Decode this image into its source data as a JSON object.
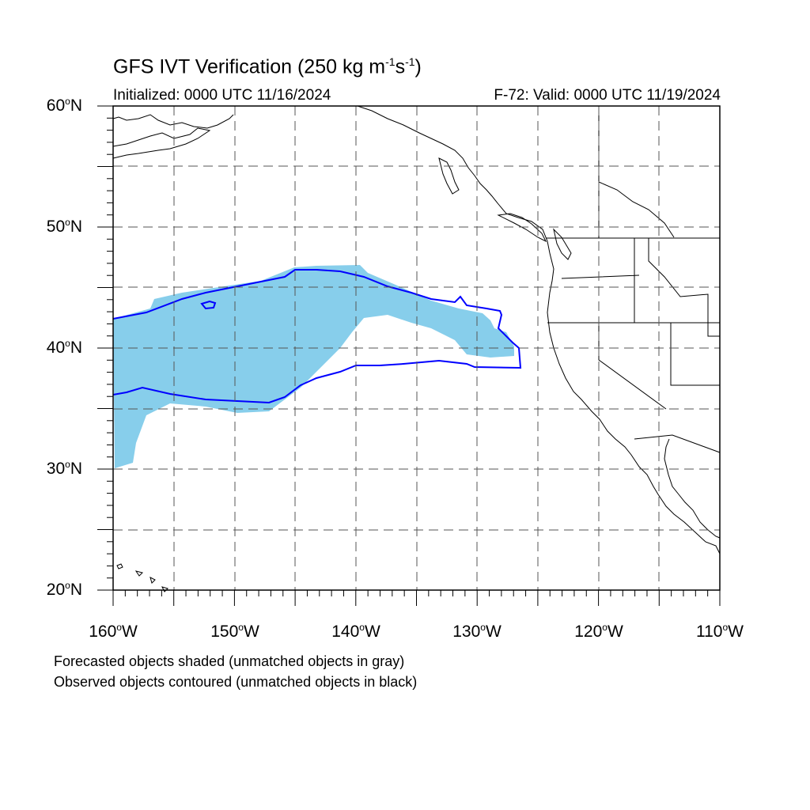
{
  "header": {
    "title_main": "GFS IVT Verification (250 kg m",
    "title_sup1": "-1",
    "title_mid": "s",
    "title_sup2": "-1",
    "title_end": ")",
    "initialized": "Initialized: 0000 UTC 11/16/2024",
    "valid": "F-72: Valid: 0000 UTC 11/19/2024"
  },
  "axes": {
    "lat_labels": [
      {
        "deg": "60",
        "hem": "N"
      },
      {
        "deg": "50",
        "hem": "N"
      },
      {
        "deg": "40",
        "hem": "N"
      },
      {
        "deg": "30",
        "hem": "N"
      },
      {
        "deg": "20",
        "hem": "N"
      }
    ],
    "lon_labels": [
      {
        "deg": "160",
        "hem": "W"
      },
      {
        "deg": "150",
        "hem": "W"
      },
      {
        "deg": "140",
        "hem": "W"
      },
      {
        "deg": "130",
        "hem": "W"
      },
      {
        "deg": "120",
        "hem": "W"
      },
      {
        "deg": "110",
        "hem": "W"
      }
    ],
    "lon_range": [
      -160,
      -110
    ],
    "lat_range": [
      20,
      60
    ]
  },
  "legend": {
    "line1": "Forecasted objects shaded (unmatched objects in gray)",
    "line2": "Observed objects contoured (unmatched objects in black)"
  },
  "colors": {
    "forecast_fill": "#87ceeb",
    "observed_contour": "#0000ff",
    "coastline": "#000000",
    "grid": "#555555"
  }
}
